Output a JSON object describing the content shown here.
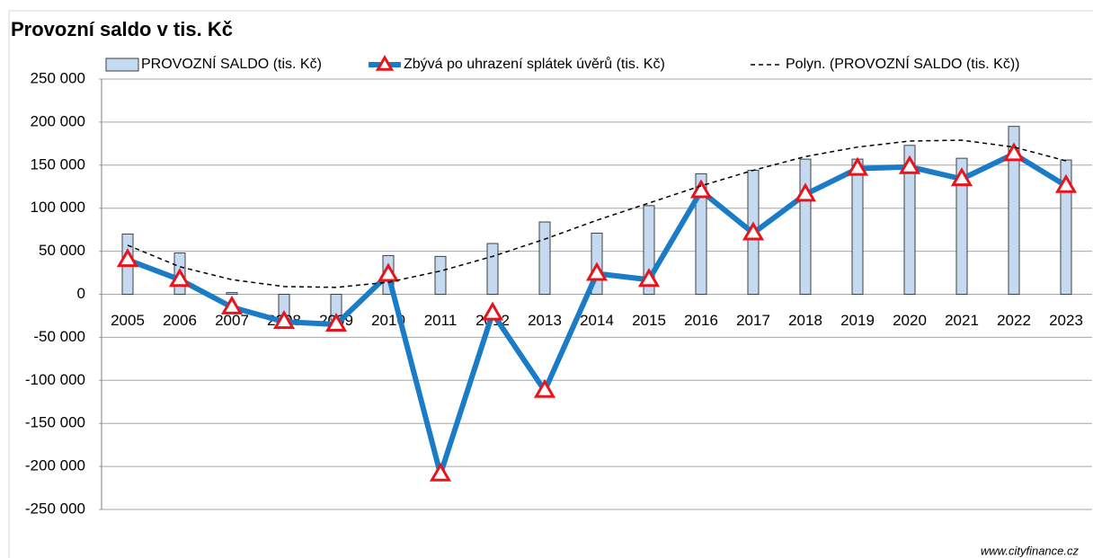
{
  "chart_data": {
    "type": "combo",
    "title": "Provozní saldo v tis. Kč",
    "source": "www.cityfinance.cz",
    "categories": [
      "2005",
      "2006",
      "2007",
      "2008",
      "2009",
      "2010",
      "2011",
      "2012",
      "2013",
      "2014",
      "2015",
      "2016",
      "2017",
      "2018",
      "2019",
      "2020",
      "2021",
      "2022",
      "2023"
    ],
    "series": [
      {
        "name": "PROVOZNÍ SALDO (tis. Kč)",
        "type": "bar",
        "color": "#c5d9f1",
        "values": [
          70000,
          48000,
          2000,
          -30000,
          -30000,
          45000,
          44000,
          59000,
          84000,
          71000,
          103000,
          140000,
          144000,
          157000,
          157000,
          173000,
          158000,
          195000,
          156000
        ]
      },
      {
        "name": "Zbývá po uhrazení splátek úvěrů (tis. Kč)",
        "type": "line",
        "color": "#1a7cc7",
        "marker_color": "#e8141c",
        "values": [
          40000,
          17000,
          -15000,
          -32000,
          -35000,
          23000,
          -209000,
          -22000,
          -112000,
          24000,
          17000,
          120000,
          71000,
          116000,
          146000,
          148000,
          134000,
          163000,
          126000
        ]
      },
      {
        "name": "Polyn. (PROVOZNÍ SALDO (tis. Kč))",
        "type": "trend",
        "color": "#000000",
        "values": [
          57000,
          32000,
          17000,
          9000,
          8000,
          14000,
          27000,
          44000,
          64000,
          86000,
          106000,
          126000,
          144000,
          160000,
          171000,
          178000,
          179000,
          171000,
          155000
        ]
      }
    ],
    "ylim": [
      -250000,
      250000
    ],
    "yticks": [
      {
        "value": -250000,
        "label": "-250 000"
      },
      {
        "value": -200000,
        "label": "-200 000"
      },
      {
        "value": -150000,
        "label": "-150 000"
      },
      {
        "value": -100000,
        "label": "-100 000"
      },
      {
        "value": -50000,
        "label": "-50 000"
      },
      0,
      {
        "value": 50000,
        "label": "50 000"
      },
      {
        "value": 100000,
        "label": "100 000"
      },
      {
        "value": 150000,
        "label": "150 000"
      },
      {
        "value": 200000,
        "label": "200 000"
      },
      {
        "value": 250000,
        "label": "250 000"
      }
    ],
    "grid": true
  }
}
